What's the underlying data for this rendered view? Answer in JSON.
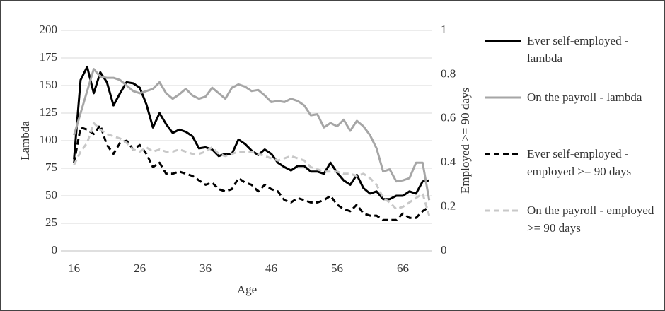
{
  "chart_data": {
    "type": "line",
    "x_label": "Age",
    "y_label": "Lambda",
    "y2_label": "Employed >= 90 days",
    "x": [
      16,
      17,
      18,
      19,
      20,
      21,
      22,
      23,
      24,
      25,
      26,
      27,
      28,
      29,
      30,
      31,
      32,
      33,
      34,
      35,
      36,
      37,
      38,
      39,
      40,
      41,
      42,
      43,
      44,
      45,
      46,
      47,
      48,
      49,
      50,
      51,
      52,
      53,
      54,
      55,
      56,
      57,
      58,
      59,
      60,
      61,
      62,
      63,
      64,
      65,
      66,
      67,
      68,
      69,
      70
    ],
    "xlim": [
      14,
      71
    ],
    "xticks": [
      16,
      26,
      36,
      46,
      56,
      66
    ],
    "ylim": [
      0,
      200
    ],
    "yticks": [
      0,
      25,
      50,
      75,
      100,
      125,
      150,
      175,
      200
    ],
    "y2lim": [
      0,
      1
    ],
    "y2ticks": [
      0,
      0.2,
      0.4,
      0.6,
      0.8,
      1
    ],
    "grid": true,
    "legend": "right",
    "series": [
      {
        "name": "Ever self-employed - lambda",
        "color": "#000000",
        "dashed": false,
        "values": [
          83,
          155,
          167,
          143,
          162,
          153,
          132,
          143,
          153,
          152,
          148,
          133,
          112,
          125,
          115,
          107,
          110,
          108,
          104,
          93,
          94,
          92,
          86,
          88,
          88,
          101,
          97,
          91,
          87,
          92,
          88,
          80,
          76,
          73,
          77,
          77,
          72,
          72,
          70,
          80,
          71,
          64,
          60,
          69,
          57,
          52,
          54,
          47,
          47,
          50,
          50,
          54,
          52,
          63,
          64
        ]
      },
      {
        "name": "On the payroll - lambda",
        "color": "#a6a6a6",
        "dashed": false,
        "values": [
          105,
          125,
          145,
          165,
          158,
          157,
          157,
          155,
          150,
          145,
          143,
          145,
          147,
          153,
          143,
          138,
          142,
          147,
          141,
          138,
          140,
          148,
          143,
          138,
          148,
          151,
          149,
          145,
          146,
          141,
          135,
          136,
          135,
          138,
          136,
          132,
          123,
          124,
          112,
          116,
          113,
          119,
          109,
          118,
          113,
          105,
          93,
          72,
          74,
          63,
          64,
          66,
          80,
          80,
          46
        ]
      },
      {
        "name": "Ever self-employed - employed >= 90 days",
        "color": "#000000",
        "dashed": true,
        "axis": "y2",
        "values": [
          0.4,
          0.56,
          0.55,
          0.53,
          0.57,
          0.48,
          0.44,
          0.49,
          0.5,
          0.46,
          0.48,
          0.44,
          0.38,
          0.4,
          0.35,
          0.35,
          0.36,
          0.35,
          0.34,
          0.32,
          0.3,
          0.31,
          0.28,
          0.27,
          0.28,
          0.33,
          0.31,
          0.3,
          0.27,
          0.3,
          0.28,
          0.27,
          0.23,
          0.22,
          0.24,
          0.23,
          0.22,
          0.22,
          0.23,
          0.25,
          0.21,
          0.19,
          0.18,
          0.21,
          0.17,
          0.16,
          0.16,
          0.14,
          0.14,
          0.14,
          0.17,
          0.15,
          0.15,
          0.18,
          0.2
        ]
      },
      {
        "name": "On the payroll - employed >= 90 days",
        "color": "#c8c8c8",
        "dashed": true,
        "axis": "y2",
        "values": [
          0.39,
          0.45,
          0.49,
          0.58,
          0.55,
          0.53,
          0.52,
          0.51,
          0.49,
          0.46,
          0.45,
          0.47,
          0.45,
          0.46,
          0.45,
          0.45,
          0.46,
          0.45,
          0.44,
          0.44,
          0.45,
          0.47,
          0.44,
          0.43,
          0.44,
          0.45,
          0.45,
          0.45,
          0.44,
          0.43,
          0.42,
          0.41,
          0.42,
          0.43,
          0.42,
          0.41,
          0.38,
          0.37,
          0.36,
          0.36,
          0.36,
          0.35,
          0.35,
          0.34,
          0.35,
          0.33,
          0.3,
          0.24,
          0.22,
          0.19,
          0.2,
          0.22,
          0.24,
          0.26,
          0.16
        ]
      }
    ]
  }
}
